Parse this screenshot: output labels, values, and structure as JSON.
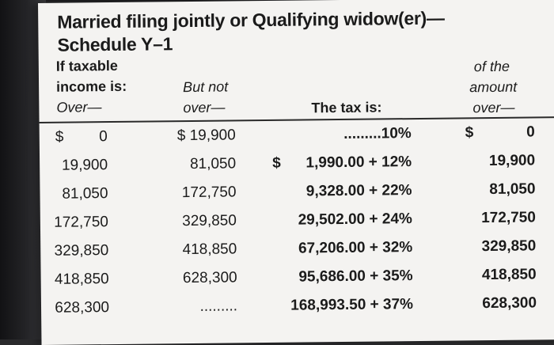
{
  "title_line1": "Married filing jointly or Qualifying widow(er)—",
  "title_line2": "Schedule Y–1",
  "headers": {
    "col1_line1": "If taxable",
    "col1_line2": "income is:",
    "col1_line3": "Over—",
    "col2_line1": "But not",
    "col2_line2": "over—",
    "col3": "The tax is:",
    "col4_line1": "of the",
    "col4_line2": "amount",
    "col4_line3": "over—"
  },
  "currency_symbol": "$",
  "rows": [
    {
      "over": "0",
      "but_not_over": "$ 19,900",
      "tax": ".........10%",
      "amount_over": "0"
    },
    {
      "over": "19,900",
      "but_not_over": "81,050",
      "tax": "1,990.00 + 12%",
      "amount_over": "19,900"
    },
    {
      "over": "81,050",
      "but_not_over": "172,750",
      "tax": "9,328.00 + 22%",
      "amount_over": "81,050"
    },
    {
      "over": "172,750",
      "but_not_over": "329,850",
      "tax": "29,502.00 + 24%",
      "amount_over": "172,750"
    },
    {
      "over": "329,850",
      "but_not_over": "418,850",
      "tax": "67,206.00 + 32%",
      "amount_over": "329,850"
    },
    {
      "over": "418,850",
      "but_not_over": "628,300",
      "tax": "95,686.00 + 35%",
      "amount_over": "418,850"
    },
    {
      "over": "628,300",
      "but_not_over": ".........",
      "tax": "168,993.50 + 37%",
      "amount_over": "628,300"
    }
  ]
}
